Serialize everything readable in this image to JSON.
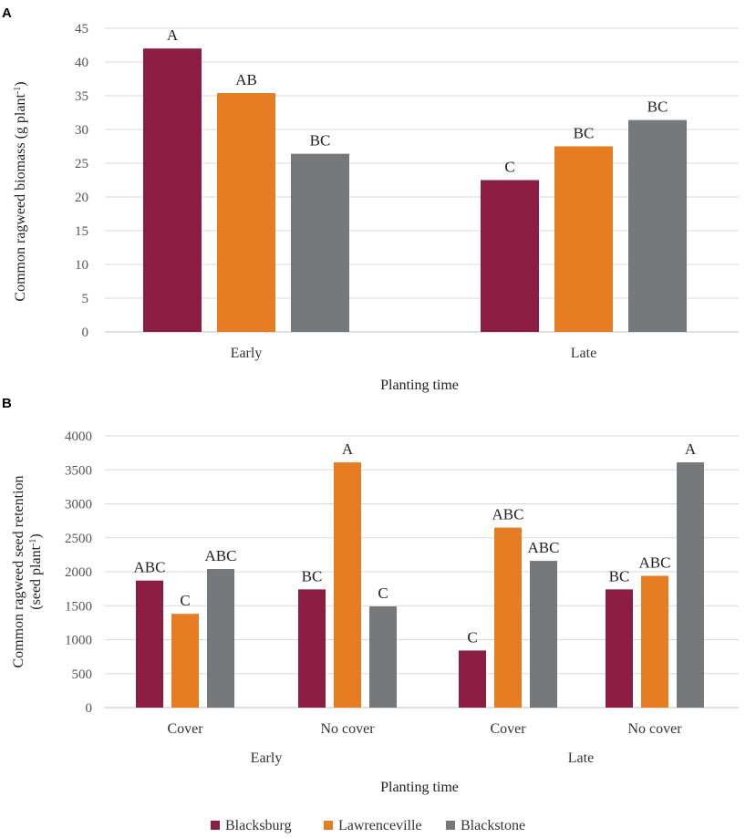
{
  "colors": {
    "Blacksburg": "#8b1c42",
    "Lawrenceville": "#e67d22",
    "Blackstone": "#76797b"
  },
  "legend": [
    "Blacksburg",
    "Lawrenceville",
    "Blackstone"
  ],
  "chart_data": [
    {
      "panel": "A",
      "type": "bar",
      "categories": [
        "Early",
        "Late"
      ],
      "series": [
        {
          "name": "Blacksburg",
          "values": [
            42,
            22.5
          ],
          "labels": [
            "A",
            "C"
          ]
        },
        {
          "name": "Lawrenceville",
          "values": [
            35.4,
            27.5
          ],
          "labels": [
            "AB",
            "BC"
          ]
        },
        {
          "name": "Blackstone",
          "values": [
            26.4,
            31.4
          ],
          "labels": [
            "BC",
            "BC"
          ]
        }
      ],
      "ylim": [
        0,
        45
      ],
      "yticks": [
        0,
        5,
        10,
        15,
        20,
        25,
        30,
        35,
        40,
        45
      ],
      "ylabel_main": "Common  ragweed biomass  (g plant",
      "ylabel_sup": "-1",
      "ylabel_end": ")",
      "xlabel": "Planting time"
    },
    {
      "panel": "B",
      "type": "bar",
      "categories": [
        "Cover",
        "No cover",
        "Cover",
        "No cover"
      ],
      "groups": [
        "Early",
        "Late"
      ],
      "series": [
        {
          "name": "Blacksburg",
          "values": [
            1870,
            1740,
            840,
            1740
          ],
          "labels": [
            "ABC",
            "BC",
            "C",
            "BC"
          ]
        },
        {
          "name": "Lawrenceville",
          "values": [
            1380,
            3610,
            2650,
            1940
          ],
          "labels": [
            "C",
            "A",
            "ABC",
            "ABC"
          ]
        },
        {
          "name": "Blackstone",
          "values": [
            2040,
            1490,
            2160,
            3610
          ],
          "labels": [
            "ABC",
            "C",
            "ABC",
            "A"
          ]
        }
      ],
      "ylim": [
        0,
        4000
      ],
      "yticks": [
        0,
        500,
        1000,
        1500,
        2000,
        2500,
        3000,
        3500,
        4000
      ],
      "ylabel_line1": "Common ragweed seed retention",
      "ylabel_line2": "(seed plant",
      "ylabel_sup": "-1",
      "ylabel_end": ")",
      "xlabel": "Planting time"
    }
  ]
}
